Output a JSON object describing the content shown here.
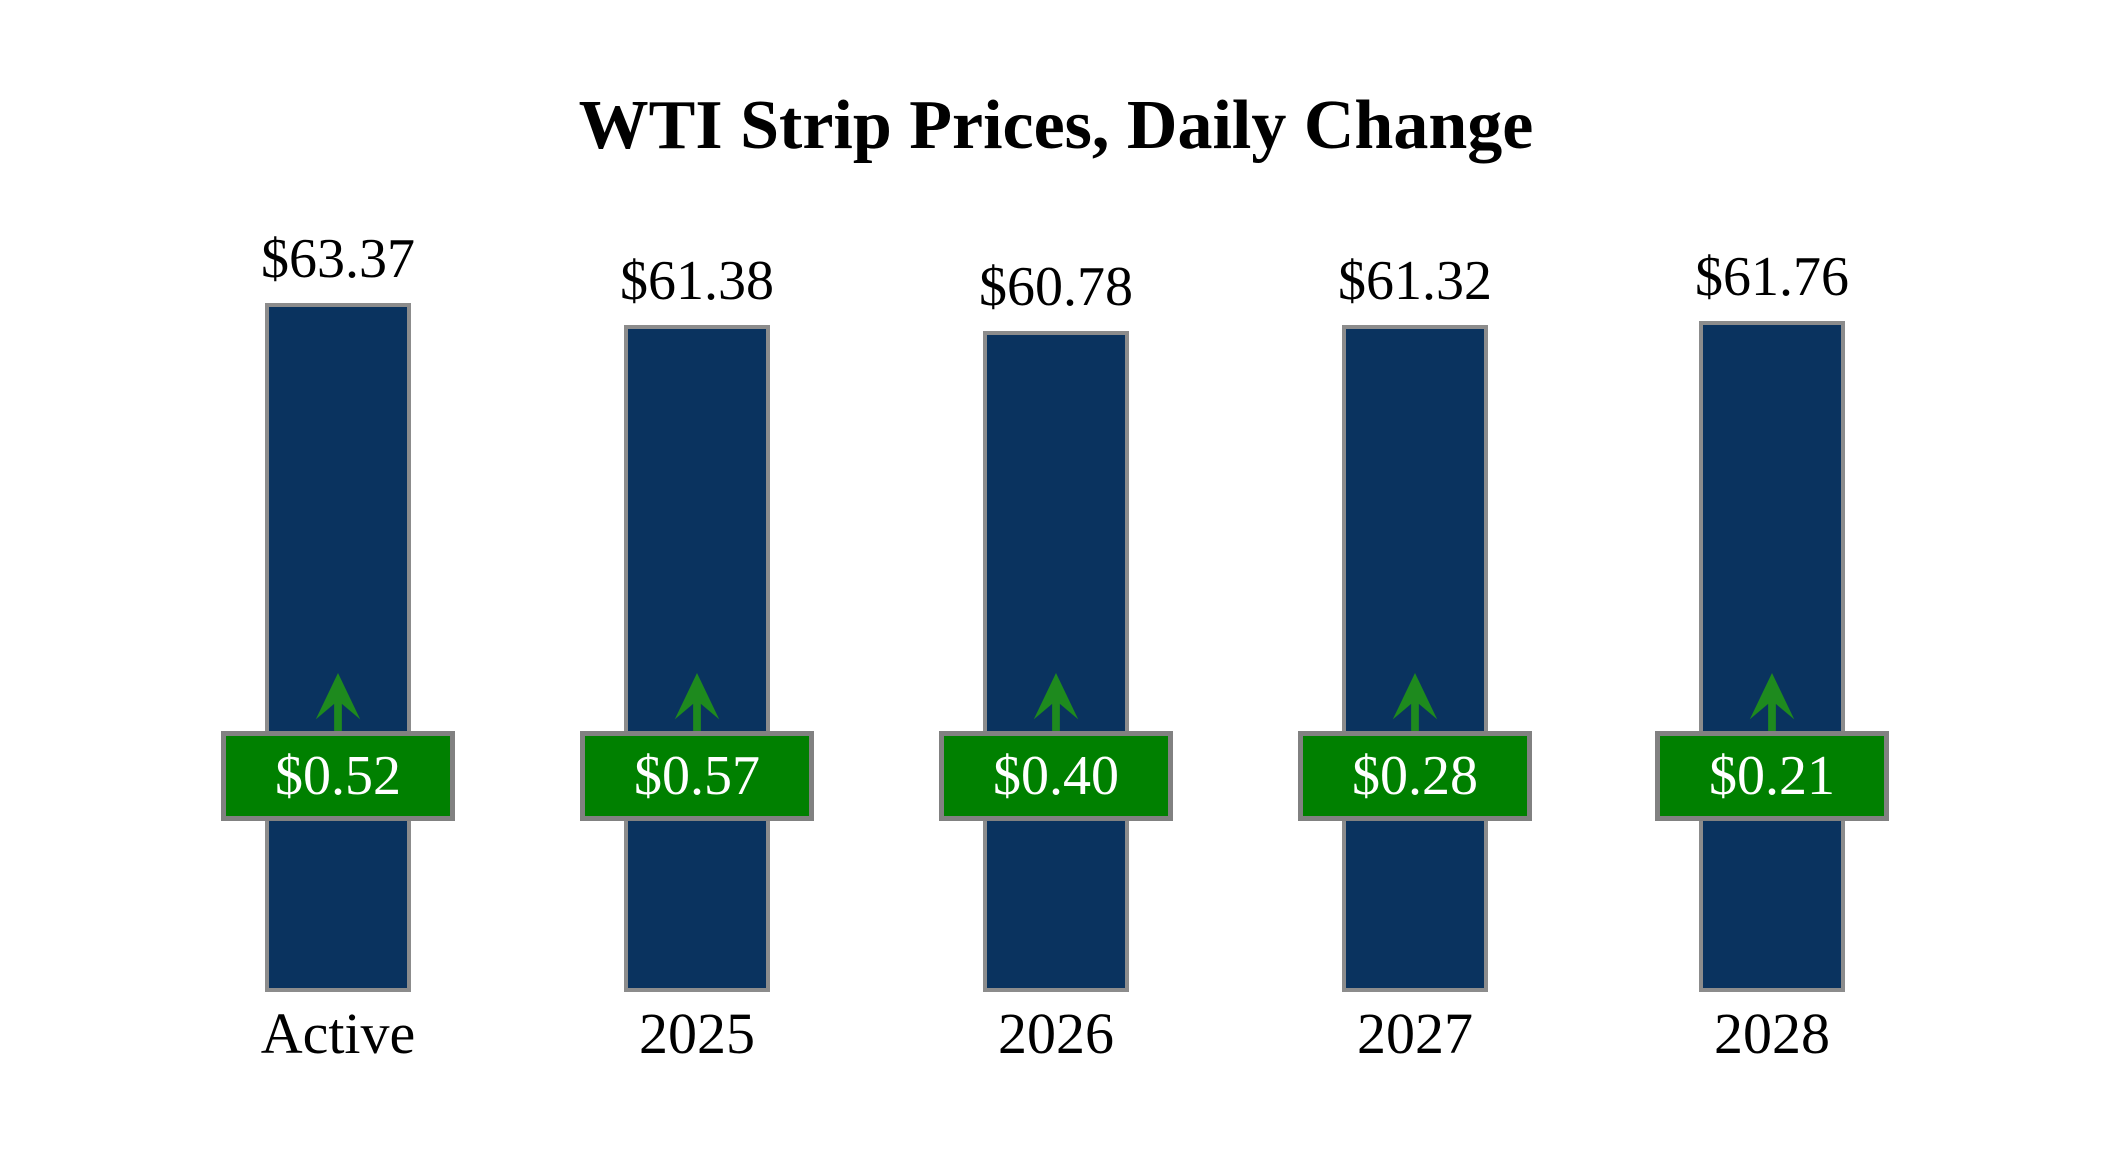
{
  "title": "WTI Strip Prices, Daily Change",
  "chart_data": {
    "type": "bar",
    "title": "WTI Strip Prices, Daily Change",
    "categories": [
      "Active",
      "2025",
      "2026",
      "2027",
      "2028"
    ],
    "series": [
      {
        "name": "Strip Price",
        "role": "bar",
        "values": [
          63.37,
          61.38,
          60.78,
          61.32,
          61.76
        ],
        "labels": [
          "$63.37",
          "$61.38",
          "$60.78",
          "$61.32",
          "$61.76"
        ],
        "label_position": "above-bar"
      },
      {
        "name": "Daily Change",
        "role": "overlay-badge",
        "values": [
          0.52,
          0.57,
          0.4,
          0.28,
          0.21
        ],
        "labels": [
          "$0.52",
          "$0.57",
          "$0.40",
          "$0.28",
          "$0.21"
        ],
        "direction": "up",
        "direction_icon": "up-arrow-icon"
      }
    ],
    "xlabel": "",
    "ylabel": "",
    "ylim": [
      0,
      63.37
    ],
    "grid": false,
    "legend": false,
    "axes_hidden": true
  },
  "colors": {
    "background": "#ffffff",
    "title_text": "#000000",
    "bar_fill": "#0a335f",
    "bar_border": "#8c8c8c",
    "badge_fill": "#008000",
    "badge_border": "#818181",
    "badge_text": "#ffffff",
    "arrow_green": "#1e8a1e",
    "label_text": "#000000"
  }
}
